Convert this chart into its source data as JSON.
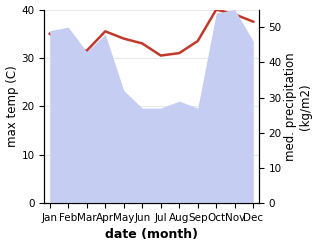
{
  "months": [
    "Jan",
    "Feb",
    "Mar",
    "Apr",
    "May",
    "Jun",
    "Jul",
    "Aug",
    "Sep",
    "Oct",
    "Nov",
    "Dec"
  ],
  "temp_max": [
    35.0,
    32.0,
    31.5,
    35.5,
    34.0,
    33.0,
    30.5,
    31.0,
    33.5,
    40.0,
    39.0,
    37.5
  ],
  "precipitation": [
    49,
    50,
    43,
    48,
    32,
    27,
    27,
    29,
    27,
    54,
    55,
    46
  ],
  "temp_color": "#c0392b",
  "precip_fill_color": "#c5cdf2",
  "temp_ylim": [
    0,
    40
  ],
  "precip_ylim": [
    0,
    55
  ],
  "temp_yticks": [
    0,
    10,
    20,
    30,
    40
  ],
  "precip_yticks": [
    0,
    10,
    20,
    30,
    40,
    50
  ],
  "xlabel": "date (month)",
  "ylabel_left": "max temp (C)",
  "ylabel_right": "med. precipitation\n(kg/m2)",
  "xlabel_fontsize": 9,
  "ylabel_fontsize": 8.5,
  "tick_fontsize": 7.5,
  "line_width": 1.8
}
